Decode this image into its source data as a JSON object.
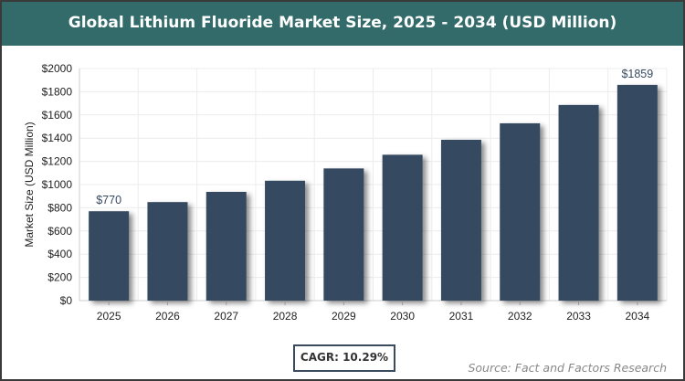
{
  "chart_data": {
    "type": "bar",
    "title": "Global Lithium Fluoride Market Size, 2025 - 2034 (USD Million)",
    "xlabel": "",
    "ylabel": "Market Size (USD Million)",
    "categories": [
      "2025",
      "2026",
      "2027",
      "2028",
      "2029",
      "2030",
      "2031",
      "2032",
      "2033",
      "2034"
    ],
    "values": [
      770,
      849,
      937,
      1033,
      1139,
      1257,
      1386,
      1528,
      1686,
      1859
    ],
    "data_labels": {
      "0": "$770",
      "9": "$1859"
    },
    "ylim": [
      0,
      2000
    ],
    "yticks": [
      0,
      200,
      400,
      600,
      800,
      1000,
      1200,
      1400,
      1600,
      1800,
      2000
    ],
    "ytick_labels": [
      "$0",
      "$200",
      "$400",
      "$600",
      "$800",
      "$1000",
      "$1200",
      "$1400",
      "$1600",
      "$1800",
      "$2000"
    ],
    "grid": true,
    "bar_color": "#364a60",
    "header_color": "#336b6a"
  },
  "cagr": "CAGR: 10.29%",
  "source": "Source: Fact and Factors Research"
}
